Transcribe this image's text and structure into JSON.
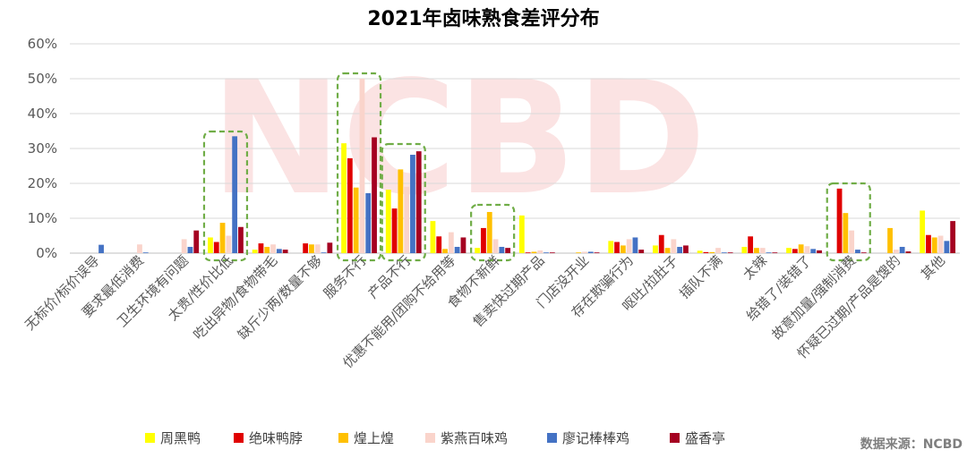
{
  "chart_data": {
    "type": "bar",
    "title": "2021年卤味熟食差评分布",
    "ylim": [
      0,
      0.6
    ],
    "yticks": [
      "0%",
      "10%",
      "20%",
      "30%",
      "40%",
      "50%",
      "60%"
    ],
    "grid": true,
    "legend_position": "bottom",
    "source": "数据来源：NCBD",
    "categories": [
      "无标价/标价误导",
      "要求最低消费",
      "卫生环境有问题",
      "太贵/性价比低",
      "吃出异物/食物带毛",
      "缺斤少两/数量不够",
      "服务不行",
      "产品不行",
      "优惠不能用/团购不给用等",
      "食物不新鲜",
      "售卖快过期产品",
      "门店没开业",
      "存在欺骗行为",
      "呕吐/拉肚子",
      "插队不满",
      "太辣",
      "给错了/装错了",
      "故意加量/强制消费",
      "怀疑已过期/产品是馊的",
      "其他"
    ],
    "series": [
      {
        "name": "周黑鸭",
        "color": "#FFFF00",
        "values": [
          0,
          0,
          0,
          0.045,
          0.01,
          0,
          0.315,
          0.182,
          0.092,
          0.015,
          0.108,
          0,
          0.035,
          0.022,
          0.007,
          0.018,
          0.015,
          0,
          0,
          0.122
        ]
      },
      {
        "name": "绝味鸭脖",
        "color": "#E00000",
        "values": [
          0,
          0,
          0,
          0.032,
          0.028,
          0.028,
          0.272,
          0.128,
          0.048,
          0.072,
          0.002,
          0,
          0.032,
          0.052,
          0.003,
          0.048,
          0.012,
          0.185,
          0,
          0.052
        ]
      },
      {
        "name": "煌上煌",
        "color": "#FFC000",
        "values": [
          0,
          0,
          0,
          0.087,
          0.018,
          0.025,
          0.188,
          0.24,
          0.012,
          0.118,
          0.004,
          0.002,
          0.022,
          0.015,
          0.003,
          0.015,
          0.025,
          0.115,
          0.072,
          0.045
        ]
      },
      {
        "name": "紫燕百味鸡",
        "color": "#FAD4CB",
        "values": [
          0,
          0.025,
          0.04,
          0.05,
          0.025,
          0.025,
          0.5,
          0.19,
          0.06,
          0.04,
          0.008,
          0.004,
          0.04,
          0.04,
          0.015,
          0.015,
          0.02,
          0.065,
          0.01,
          0.05
        ]
      },
      {
        "name": "廖记棒棒鸡",
        "color": "#4472C4",
        "values": [
          0.024,
          0.002,
          0.018,
          0.335,
          0.012,
          0.002,
          0.172,
          0.282,
          0.018,
          0.018,
          0.002,
          0.004,
          0.045,
          0.018,
          0.002,
          0.002,
          0.012,
          0.01,
          0.018,
          0.035
        ]
      },
      {
        "name": "盛香亭",
        "color": "#A50021",
        "values": [
          0,
          0,
          0.065,
          0.075,
          0.01,
          0.03,
          0.332,
          0.292,
          0.045,
          0.015,
          0.002,
          0.002,
          0.01,
          0.022,
          0.002,
          0.002,
          0.008,
          0.002,
          0.005,
          0.092
        ]
      }
    ],
    "highlighted_categories": [
      "太贵/性价比低",
      "服务不行",
      "产品不行",
      "食物不新鲜",
      "故意加量/强制消费"
    ]
  },
  "watermark": {
    "text": "NCBD"
  }
}
